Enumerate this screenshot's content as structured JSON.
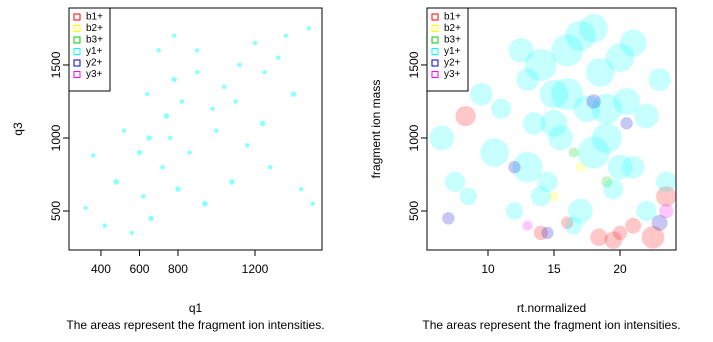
{
  "chart_data": [
    {
      "type": "scatter",
      "xlabel": "q1",
      "ylabel": "q3",
      "caption": "The areas represent the fragment ion intensities.",
      "xlim": [
        234,
        1548
      ],
      "ylim": [
        233,
        1890
      ],
      "xticks": [
        400,
        600,
        800,
        1200
      ],
      "yticks": [
        500,
        1000,
        1500
      ],
      "legend": "top-left",
      "series": [
        {
          "name": "b1+",
          "color": "#ff0000",
          "x": [],
          "y": [],
          "size": []
        },
        {
          "name": "b2+",
          "color": "#ffff00",
          "x": [],
          "y": [],
          "size": []
        },
        {
          "name": "b3+",
          "color": "#00cc00",
          "x": [],
          "y": [],
          "size": []
        },
        {
          "name": "y1+",
          "color": "#00ffff",
          "x": [
            320,
            360,
            420,
            480,
            520,
            560,
            600,
            620,
            640,
            660,
            700,
            720,
            740,
            760,
            780,
            800,
            820,
            860,
            900,
            940,
            980,
            1000,
            1040,
            1080,
            1120,
            1160,
            1200,
            1240,
            1280,
            1320,
            1360,
            1400,
            1440,
            1480,
            1500,
            650,
            780,
            900,
            1100,
            1250
          ],
          "y": [
            520,
            880,
            400,
            700,
            1050,
            350,
            900,
            600,
            1300,
            450,
            1600,
            800,
            1150,
            1000,
            1700,
            650,
            1250,
            900,
            1450,
            550,
            1200,
            1050,
            1350,
            700,
            1500,
            950,
            1650,
            1100,
            800,
            1550,
            1700,
            1300,
            650,
            1750,
            550,
            1000,
            1400,
            1600,
            1250,
            1450
          ],
          "size": [
            2,
            2,
            2,
            3,
            2,
            2,
            3,
            2,
            2,
            3,
            2,
            2,
            3,
            2,
            2,
            3,
            2,
            2,
            2,
            3,
            2,
            2,
            2,
            3,
            2,
            2,
            2,
            3,
            2,
            2,
            2,
            3,
            2,
            2,
            2,
            3,
            3,
            2,
            2,
            2
          ]
        },
        {
          "name": "y2+",
          "color": "#0000cc",
          "x": [],
          "y": [],
          "size": []
        },
        {
          "name": "y3+",
          "color": "#ff00ff",
          "x": [],
          "y": [],
          "size": []
        }
      ]
    },
    {
      "type": "scatter",
      "xlabel": "rt.normalized",
      "ylabel": "fragment ion mass",
      "caption": "The areas represent the fragment ion intensities.",
      "xlim": [
        5.38,
        24.24
      ],
      "ylim": [
        233,
        1890
      ],
      "xticks": [
        10,
        15,
        20
      ],
      "yticks": [
        500,
        1000,
        1500
      ],
      "legend": "top-left",
      "series": [
        {
          "name": "b1+",
          "color": "#ff0000",
          "x": [
            8.3,
            18.4,
            20,
            21,
            22.5,
            14,
            16,
            19.5,
            23.5
          ],
          "y": [
            1150,
            320,
            350,
            400,
            320,
            350,
            420,
            300,
            600
          ],
          "size": [
            40,
            30,
            20,
            25,
            50,
            20,
            15,
            30,
            40
          ]
        },
        {
          "name": "b2+",
          "color": "#ffff00",
          "x": [
            15,
            17
          ],
          "y": [
            600,
            800
          ],
          "size": [
            10,
            10
          ]
        },
        {
          "name": "b3+",
          "color": "#00cc00",
          "x": [
            16.5,
            19
          ],
          "y": [
            900,
            700
          ],
          "size": [
            10,
            12
          ]
        },
        {
          "name": "y1+",
          "color": "#00ffff",
          "x": [
            6.5,
            7.5,
            8.5,
            9.5,
            10.5,
            11,
            12,
            12.5,
            13,
            13.5,
            14,
            14.5,
            15,
            15.5,
            16,
            16.5,
            17,
            17.5,
            18,
            18.5,
            19,
            19.5,
            20,
            20.5,
            21,
            22,
            23,
            23.5,
            16,
            17,
            18,
            15,
            14,
            19,
            20,
            13,
            21,
            22
          ],
          "y": [
            1000,
            700,
            600,
            1300,
            900,
            1200,
            500,
            1600,
            800,
            1100,
            1500,
            700,
            1300,
            1000,
            1600,
            400,
            1700,
            1200,
            900,
            1450,
            1000,
            650,
            1550,
            1250,
            800,
            1150,
            1400,
            700,
            1300,
            500,
            1750,
            1100,
            600,
            1200,
            800,
            1400,
            1650,
            500
          ],
          "size": [
            60,
            40,
            30,
            50,
            80,
            40,
            30,
            60,
            90,
            50,
            100,
            40,
            80,
            60,
            100,
            30,
            90,
            70,
            100,
            80,
            90,
            40,
            80,
            70,
            50,
            60,
            50,
            40,
            100,
            60,
            80,
            70,
            40,
            90,
            60,
            50,
            70,
            40
          ]
        },
        {
          "name": "y2+",
          "color": "#0000cc",
          "x": [
            7,
            12,
            14.5,
            18,
            20.5,
            23
          ],
          "y": [
            450,
            800,
            350,
            1250,
            1100,
            420
          ],
          "size": [
            15,
            15,
            15,
            20,
            15,
            25
          ]
        },
        {
          "name": "y3+",
          "color": "#ff00ff",
          "x": [
            23.5,
            13
          ],
          "y": [
            500,
            400
          ],
          "size": [
            20,
            10
          ]
        }
      ]
    }
  ]
}
